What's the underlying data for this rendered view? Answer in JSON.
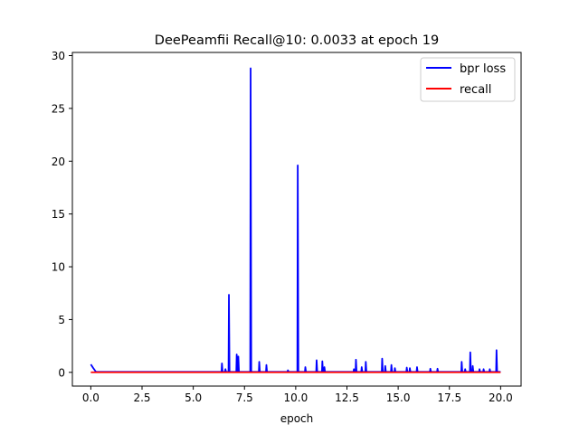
{
  "chart_data": {
    "type": "line",
    "title": "DeePeamfii Recall@10: 0.0033 at epoch 19",
    "xlabel": "epoch",
    "ylabel": "",
    "xlim": [
      -0.9,
      21.0
    ],
    "ylim": [
      -1.3,
      30.3
    ],
    "xticks": [
      0.0,
      2.5,
      5.0,
      7.5,
      10.0,
      12.5,
      15.0,
      17.5,
      20.0
    ],
    "xtick_labels": [
      "0.0",
      "2.5",
      "5.0",
      "7.5",
      "10.0",
      "12.5",
      "15.0",
      "17.5",
      "20.0"
    ],
    "yticks": [
      0,
      5,
      10,
      15,
      20,
      25,
      30
    ],
    "ytick_labels": [
      "0",
      "5",
      "10",
      "15",
      "20",
      "25",
      "30"
    ],
    "grid": false,
    "legend_placement": "top-right",
    "series": [
      {
        "name": "bpr loss",
        "color": "#0000ff",
        "x": [
          0.0,
          0.12,
          0.25,
          1.0,
          2.0,
          3.0,
          4.0,
          5.0,
          6.0,
          6.38,
          6.4,
          6.43,
          6.55,
          6.57,
          6.6,
          6.72,
          6.74,
          6.77,
          7.1,
          7.12,
          7.15,
          7.18,
          7.2,
          7.23,
          7.78,
          7.8,
          7.83,
          8.2,
          8.22,
          8.25,
          8.55,
          8.57,
          8.6,
          9.6,
          9.62,
          9.65,
          10.08,
          10.1,
          10.13,
          10.45,
          10.47,
          10.5,
          11.0,
          11.02,
          11.05,
          11.28,
          11.3,
          11.33,
          11.38,
          11.4,
          11.43,
          12.82,
          12.84,
          12.87,
          12.92,
          12.94,
          12.97,
          13.2,
          13.22,
          13.25,
          13.4,
          13.42,
          13.45,
          14.2,
          14.22,
          14.25,
          14.35,
          14.37,
          14.4,
          14.65,
          14.67,
          14.7,
          14.82,
          14.84,
          14.87,
          15.4,
          15.42,
          15.45,
          15.55,
          15.57,
          15.6,
          15.9,
          15.92,
          15.95,
          16.55,
          16.57,
          16.6,
          16.9,
          16.92,
          16.95,
          18.08,
          18.1,
          18.13,
          18.25,
          18.27,
          18.3,
          18.5,
          18.52,
          18.55,
          18.62,
          18.64,
          18.67,
          18.95,
          18.97,
          19.0,
          19.15,
          19.17,
          19.2,
          19.45,
          19.47,
          19.5,
          19.78,
          19.8,
          19.83,
          20.0
        ],
        "y": [
          0.75,
          0.4,
          0.05,
          0.05,
          0.05,
          0.05,
          0.05,
          0.05,
          0.05,
          0.05,
          0.85,
          0.05,
          0.05,
          0.3,
          0.05,
          0.05,
          7.35,
          0.05,
          0.05,
          1.7,
          0.05,
          0.05,
          1.5,
          0.05,
          0.05,
          28.8,
          0.05,
          0.05,
          1.0,
          0.05,
          0.05,
          0.7,
          0.05,
          0.05,
          0.2,
          0.05,
          0.05,
          19.6,
          0.05,
          0.05,
          0.5,
          0.05,
          0.05,
          1.15,
          0.05,
          0.05,
          1.05,
          0.05,
          0.05,
          0.5,
          0.05,
          0.05,
          0.3,
          0.05,
          0.05,
          1.2,
          0.05,
          0.05,
          0.5,
          0.05,
          0.05,
          1.0,
          0.05,
          0.05,
          1.3,
          0.05,
          0.05,
          0.6,
          0.05,
          0.05,
          0.7,
          0.05,
          0.05,
          0.4,
          0.05,
          0.05,
          0.45,
          0.05,
          0.05,
          0.4,
          0.05,
          0.05,
          0.5,
          0.05,
          0.05,
          0.35,
          0.05,
          0.05,
          0.35,
          0.05,
          0.05,
          1.0,
          0.05,
          0.05,
          0.3,
          0.05,
          0.05,
          1.9,
          0.05,
          0.05,
          0.6,
          0.05,
          0.05,
          0.3,
          0.05,
          0.05,
          0.3,
          0.05,
          0.05,
          0.3,
          0.05,
          0.05,
          2.1,
          0.05,
          0.05
        ]
      },
      {
        "name": "recall",
        "color": "#ff0000",
        "x": [
          0.0,
          20.0
        ],
        "y": [
          0.003,
          0.003
        ]
      }
    ]
  }
}
